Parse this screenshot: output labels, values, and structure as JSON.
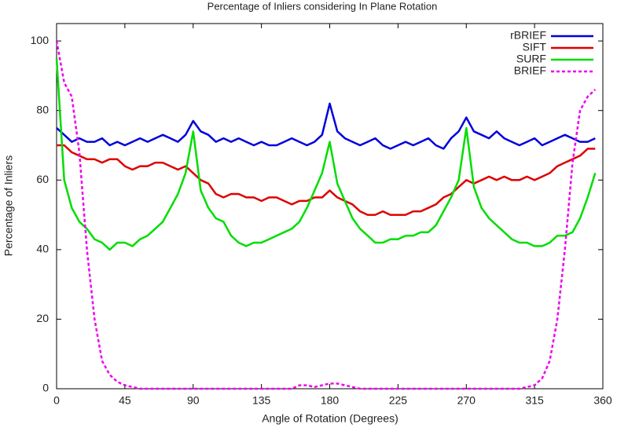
{
  "chart_data": {
    "type": "line",
    "title": "Percentage of Inliers considering In Plane Rotation",
    "x_label": "Angle of Rotation (Degrees)",
    "y_label": "Percentage of Inliers",
    "x": [
      0,
      5,
      10,
      15,
      20,
      25,
      30,
      35,
      40,
      45,
      50,
      55,
      60,
      65,
      70,
      75,
      80,
      85,
      90,
      95,
      100,
      105,
      110,
      115,
      120,
      125,
      130,
      135,
      140,
      145,
      150,
      155,
      160,
      165,
      170,
      175,
      180,
      185,
      190,
      195,
      200,
      205,
      210,
      215,
      220,
      225,
      230,
      235,
      240,
      245,
      250,
      255,
      260,
      265,
      270,
      275,
      280,
      285,
      290,
      295,
      300,
      305,
      310,
      315,
      320,
      325,
      330,
      335,
      340,
      345,
      350,
      355
    ],
    "series": [
      {
        "name": "rBRIEF",
        "color": "#0000dd",
        "values": [
          75,
          73,
          71,
          72,
          71,
          71,
          72,
          70,
          71,
          70,
          71,
          72,
          71,
          72,
          73,
          72,
          71,
          73,
          77,
          74,
          73,
          71,
          72,
          71,
          72,
          71,
          70,
          71,
          70,
          70,
          71,
          72,
          71,
          70,
          71,
          73,
          82,
          74,
          72,
          71,
          70,
          71,
          72,
          70,
          69,
          70,
          71,
          70,
          71,
          72,
          70,
          69,
          72,
          74,
          78,
          74,
          73,
          72,
          74,
          72,
          71,
          70,
          71,
          72,
          70,
          71,
          72,
          73,
          72,
          71,
          71,
          72
        ]
      },
      {
        "name": "SIFT",
        "color": "#dd0000",
        "values": [
          70,
          70,
          68,
          67,
          66,
          66,
          65,
          66,
          66,
          64,
          63,
          64,
          64,
          65,
          65,
          64,
          63,
          64,
          62,
          60,
          59,
          56,
          55,
          56,
          56,
          55,
          55,
          54,
          55,
          55,
          54,
          53,
          54,
          54,
          55,
          55,
          57,
          55,
          54,
          53,
          51,
          50,
          50,
          51,
          50,
          50,
          50,
          51,
          51,
          52,
          53,
          55,
          56,
          58,
          60,
          59,
          60,
          61,
          60,
          61,
          60,
          60,
          61,
          60,
          61,
          62,
          64,
          65,
          66,
          67,
          69,
          69
        ]
      },
      {
        "name": "SURF",
        "color": "#00dd00",
        "values": [
          95,
          60,
          52,
          48,
          46,
          43,
          42,
          40,
          42,
          42,
          41,
          43,
          44,
          46,
          48,
          52,
          56,
          62,
          74,
          57,
          52,
          49,
          48,
          44,
          42,
          41,
          42,
          42,
          43,
          44,
          45,
          46,
          48,
          52,
          57,
          62,
          71,
          59,
          54,
          49,
          46,
          44,
          42,
          42,
          43,
          43,
          44,
          44,
          45,
          45,
          47,
          51,
          55,
          60,
          75,
          58,
          52,
          49,
          47,
          45,
          43,
          42,
          42,
          41,
          41,
          42,
          44,
          44,
          45,
          49,
          55,
          62
        ]
      },
      {
        "name": "BRIEF",
        "color": "#ee00ee",
        "dashed": true,
        "values": [
          100,
          88,
          84,
          68,
          40,
          20,
          8,
          4,
          2,
          1,
          0.5,
          0,
          0,
          0,
          0,
          0,
          0,
          0,
          0,
          0,
          0,
          0,
          0,
          0,
          0,
          0,
          0,
          0,
          0,
          0,
          0,
          0,
          1,
          1,
          0.5,
          1,
          1.5,
          1.5,
          1,
          0.5,
          0,
          0,
          0,
          0,
          0,
          0,
          0,
          0,
          0,
          0,
          0,
          0,
          0,
          0,
          0,
          0,
          0,
          0,
          0,
          0,
          0,
          0,
          0.5,
          1,
          3,
          8,
          20,
          40,
          65,
          80,
          84,
          86
        ]
      }
    ],
    "xlim": [
      0,
      360
    ],
    "xticks": [
      0,
      45,
      90,
      135,
      180,
      225,
      270,
      315,
      360
    ],
    "ylim": [
      0,
      105
    ],
    "yticks": [
      0,
      20,
      40,
      60,
      80,
      100
    ],
    "grid": false,
    "legend": "upper right"
  }
}
